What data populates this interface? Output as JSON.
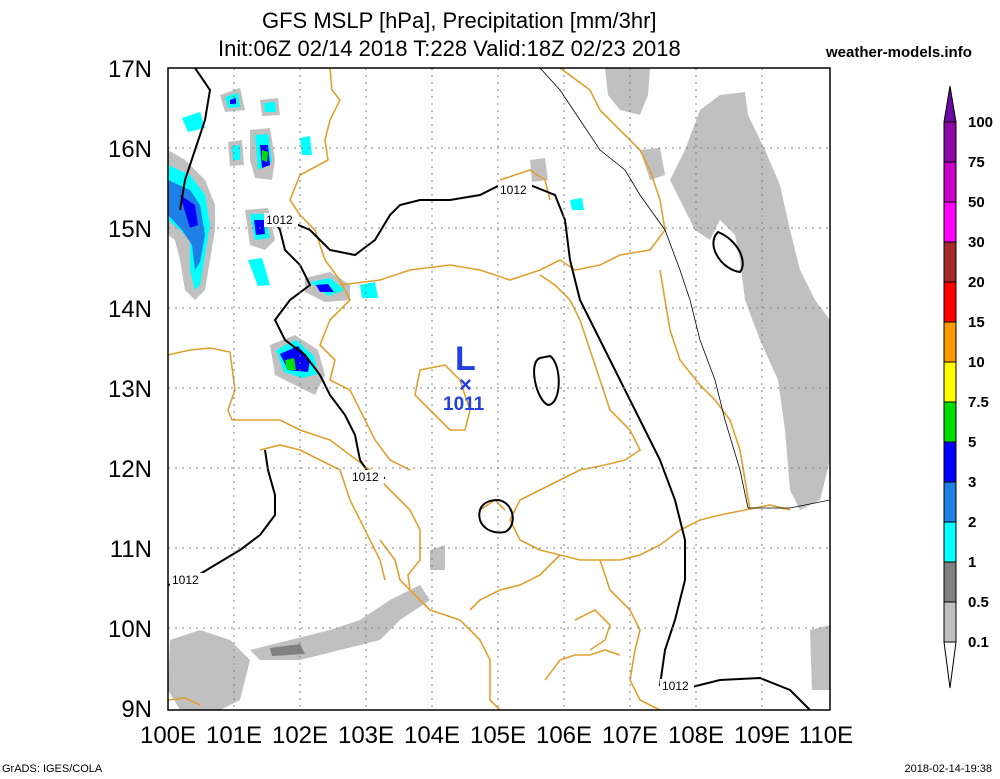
{
  "title": {
    "line1": "GFS MSLP [hPa], Precipitation [mm/3hr]",
    "line2": "Init:06Z 02/14 2018 T:228 Valid:18Z 02/23 2018"
  },
  "site_label": "weather-models.info",
  "footer": {
    "left": "GrADS: IGES/COLA",
    "right": "2018-02-14-19:38"
  },
  "axes": {
    "lat_labels": [
      "17N",
      "16N",
      "15N",
      "14N",
      "13N",
      "12N",
      "11N",
      "10N",
      "9N"
    ],
    "lon_labels": [
      "100E",
      "101E",
      "102E",
      "103E",
      "104E",
      "105E",
      "106E",
      "107E",
      "108E",
      "109E",
      "110E"
    ],
    "grid": true
  },
  "colorbar": {
    "labels": [
      "100",
      "75",
      "50",
      "30",
      "20",
      "15",
      "10",
      "7.5",
      "5",
      "3",
      "2",
      "1",
      "0.5",
      "0.1"
    ],
    "colors": [
      "#6a0aa0",
      "#8c0aa6",
      "#c800c8",
      "#ff00ff",
      "#a52a2a",
      "#ff0000",
      "#ff9900",
      "#ffff00",
      "#00dd00",
      "#0000ff",
      "#1e7fe6",
      "#00ffff",
      "#808080",
      "#c0c0c0",
      "#ffffff"
    ]
  },
  "pressure": {
    "low_symbol": "L",
    "low_marker": "×",
    "low_value": "1011",
    "isobar_labels": [
      "1012",
      "1012",
      "1012",
      "1012",
      "1012"
    ]
  },
  "colors": {
    "coast": "#e0a030",
    "isobar": "#000000",
    "low": "#2040e0",
    "light_precip": "#c0c0c0"
  }
}
